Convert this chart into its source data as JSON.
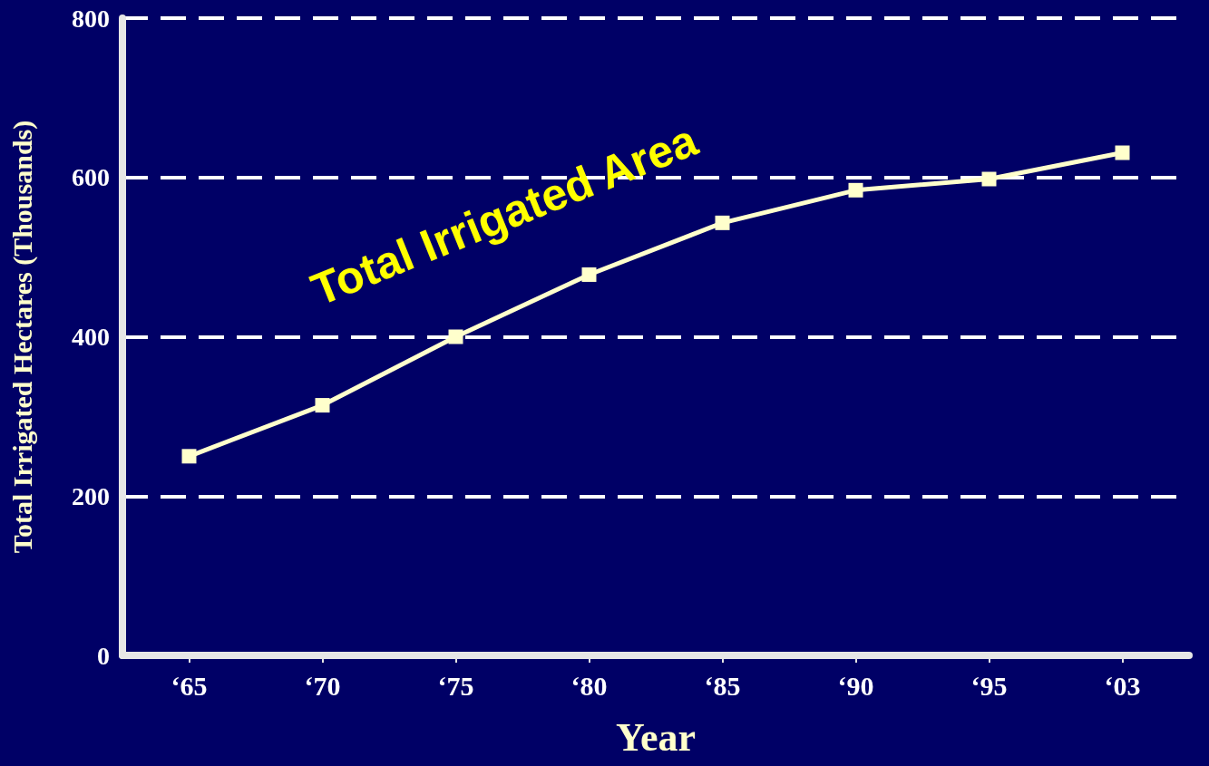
{
  "chart_data": {
    "type": "line",
    "xlabel": "Year",
    "ylabel": "Total Irrigated Hectares (Thousands)",
    "categories": [
      "‘65",
      "‘70",
      "‘75",
      "‘80",
      "‘85",
      "‘90",
      "‘95",
      "‘03"
    ],
    "series": [
      {
        "name": "Total Irrigated Area",
        "color": "#ffffcc",
        "values": [
          250,
          314,
          400,
          478,
          543,
          584,
          598,
          631
        ]
      }
    ],
    "ylim": [
      0,
      800
    ],
    "yticks": [
      0,
      200,
      400,
      600,
      800
    ],
    "grid": "y",
    "legend": false,
    "marker": "square",
    "line_style": "solid"
  }
}
